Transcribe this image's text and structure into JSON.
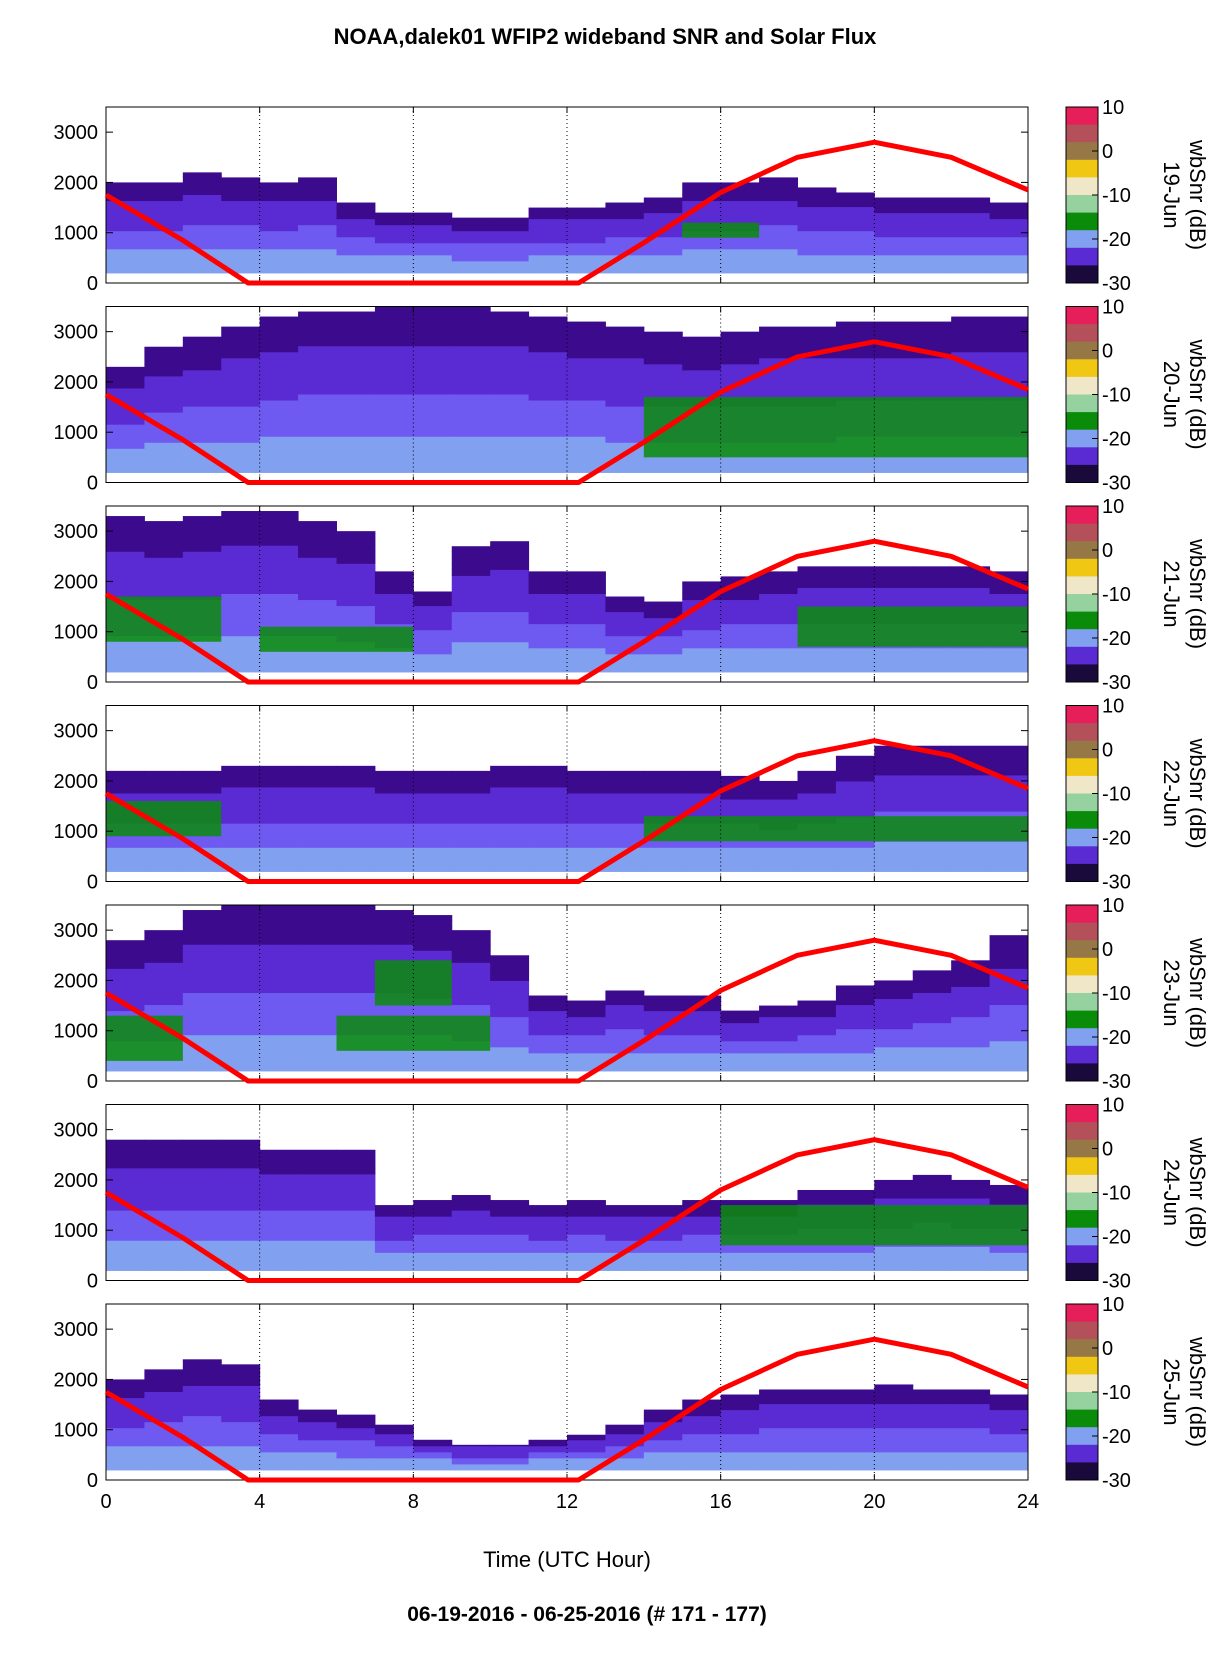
{
  "title": "NOAA,dalek01 WFIP2 wideband SNR and Solar Flux",
  "footer": "06-19-2016 - 06-25-2016   (# 171 - 177)",
  "colors": {
    "solar_curve": "#ff0000",
    "colormap": [
      "#1a0a3c",
      "#3c0a8c",
      "#5a2ad2",
      "#6e5af0",
      "#82a0f0",
      "#0a8c0a",
      "#96d2a0",
      "#f0e6c8",
      "#f0c814",
      "#967846",
      "#b4505a",
      "#e61e5a"
    ]
  },
  "chart_data": {
    "type": "heatmap",
    "xlabel": "Time (UTC Hour)",
    "x_ticks": [
      "0",
      "4",
      "8",
      "12",
      "16",
      "20",
      "24"
    ],
    "xlim": [
      0,
      24
    ],
    "ylim": [
      0,
      3500
    ],
    "y_ticks": [
      "0",
      "1000",
      "2000",
      "3000"
    ],
    "grid_x": [
      4,
      8,
      12,
      16,
      20,
      24
    ],
    "colorbar": {
      "label": "wbSnr (dB)",
      "range": [
        -30,
        10
      ],
      "ticks": [
        "10",
        "0",
        "-10",
        "-20",
        "-30"
      ]
    },
    "panels": [
      {
        "date": "19-Jun",
        "top_height": [
          2000,
          2000,
          2200,
          2100,
          2000,
          2100,
          1600,
          1400,
          1400,
          1300,
          1300,
          1500,
          1500,
          1600,
          1700,
          2000,
          2000,
          2100,
          1900,
          1800,
          1700,
          1700,
          1700,
          1600,
          1600
        ],
        "green_core": [
          [
            15,
            17,
            900,
            1200
          ]
        ]
      },
      {
        "date": "20-Jun",
        "top_height": [
          2300,
          2700,
          2900,
          3100,
          3300,
          3400,
          3400,
          3500,
          3500,
          3500,
          3400,
          3300,
          3200,
          3100,
          3000,
          2900,
          3000,
          3100,
          3100,
          3200,
          3200,
          3200,
          3300,
          3300,
          3200
        ],
        "green_core": [
          [
            14,
            24,
            500,
            1700
          ]
        ]
      },
      {
        "date": "21-Jun",
        "top_height": [
          3300,
          3200,
          3300,
          3400,
          3400,
          3200,
          3000,
          2200,
          1800,
          2700,
          2800,
          2200,
          2200,
          1700,
          1600,
          2000,
          2100,
          2200,
          2300,
          2300,
          2300,
          2300,
          2300,
          2200,
          2100
        ],
        "green_core": [
          [
            0,
            3,
            800,
            1700
          ],
          [
            4,
            8,
            600,
            1100
          ],
          [
            18,
            24,
            700,
            1500
          ]
        ]
      },
      {
        "date": "22-Jun",
        "top_height": [
          2200,
          2200,
          2200,
          2300,
          2300,
          2300,
          2300,
          2200,
          2200,
          2200,
          2300,
          2300,
          2200,
          2200,
          2200,
          2200,
          2100,
          2000,
          2200,
          2500,
          2700,
          2700,
          2700,
          2700,
          2700
        ],
        "green_core": [
          [
            0,
            3,
            900,
            1600
          ],
          [
            14,
            24,
            800,
            1300
          ]
        ]
      },
      {
        "date": "23-Jun",
        "top_height": [
          2800,
          3000,
          3400,
          3500,
          3500,
          3500,
          3500,
          3400,
          3300,
          3000,
          2500,
          1700,
          1600,
          1800,
          1700,
          1700,
          1400,
          1500,
          1600,
          1900,
          2000,
          2200,
          2400,
          2900,
          2700
        ],
        "green_core": [
          [
            0,
            2,
            400,
            1300
          ],
          [
            6,
            10,
            600,
            1300
          ],
          [
            7,
            9,
            1500,
            2400
          ]
        ]
      },
      {
        "date": "24-Jun",
        "top_height": [
          2800,
          2800,
          2800,
          2800,
          2600,
          2600,
          2600,
          1500,
          1600,
          1700,
          1600,
          1500,
          1600,
          1500,
          1500,
          1600,
          1600,
          1600,
          1800,
          1800,
          2000,
          2100,
          2000,
          1900,
          1700
        ],
        "green_core": [
          [
            16,
            24,
            700,
            1500
          ]
        ]
      },
      {
        "date": "25-Jun",
        "top_height": [
          2000,
          2200,
          2400,
          2300,
          1600,
          1400,
          1300,
          1100,
          800,
          700,
          700,
          800,
          900,
          1100,
          1400,
          1600,
          1700,
          1800,
          1800,
          1800,
          1900,
          1800,
          1800,
          1700,
          1700
        ],
        "green_core": []
      }
    ],
    "solar_flux": {
      "series_x": [
        0,
        2,
        3.7,
        12.3,
        14,
        16,
        18,
        20,
        22,
        24
      ],
      "series_y": [
        1750,
        850,
        0,
        0,
        800,
        1800,
        2500,
        2800,
        2500,
        1850
      ]
    }
  }
}
